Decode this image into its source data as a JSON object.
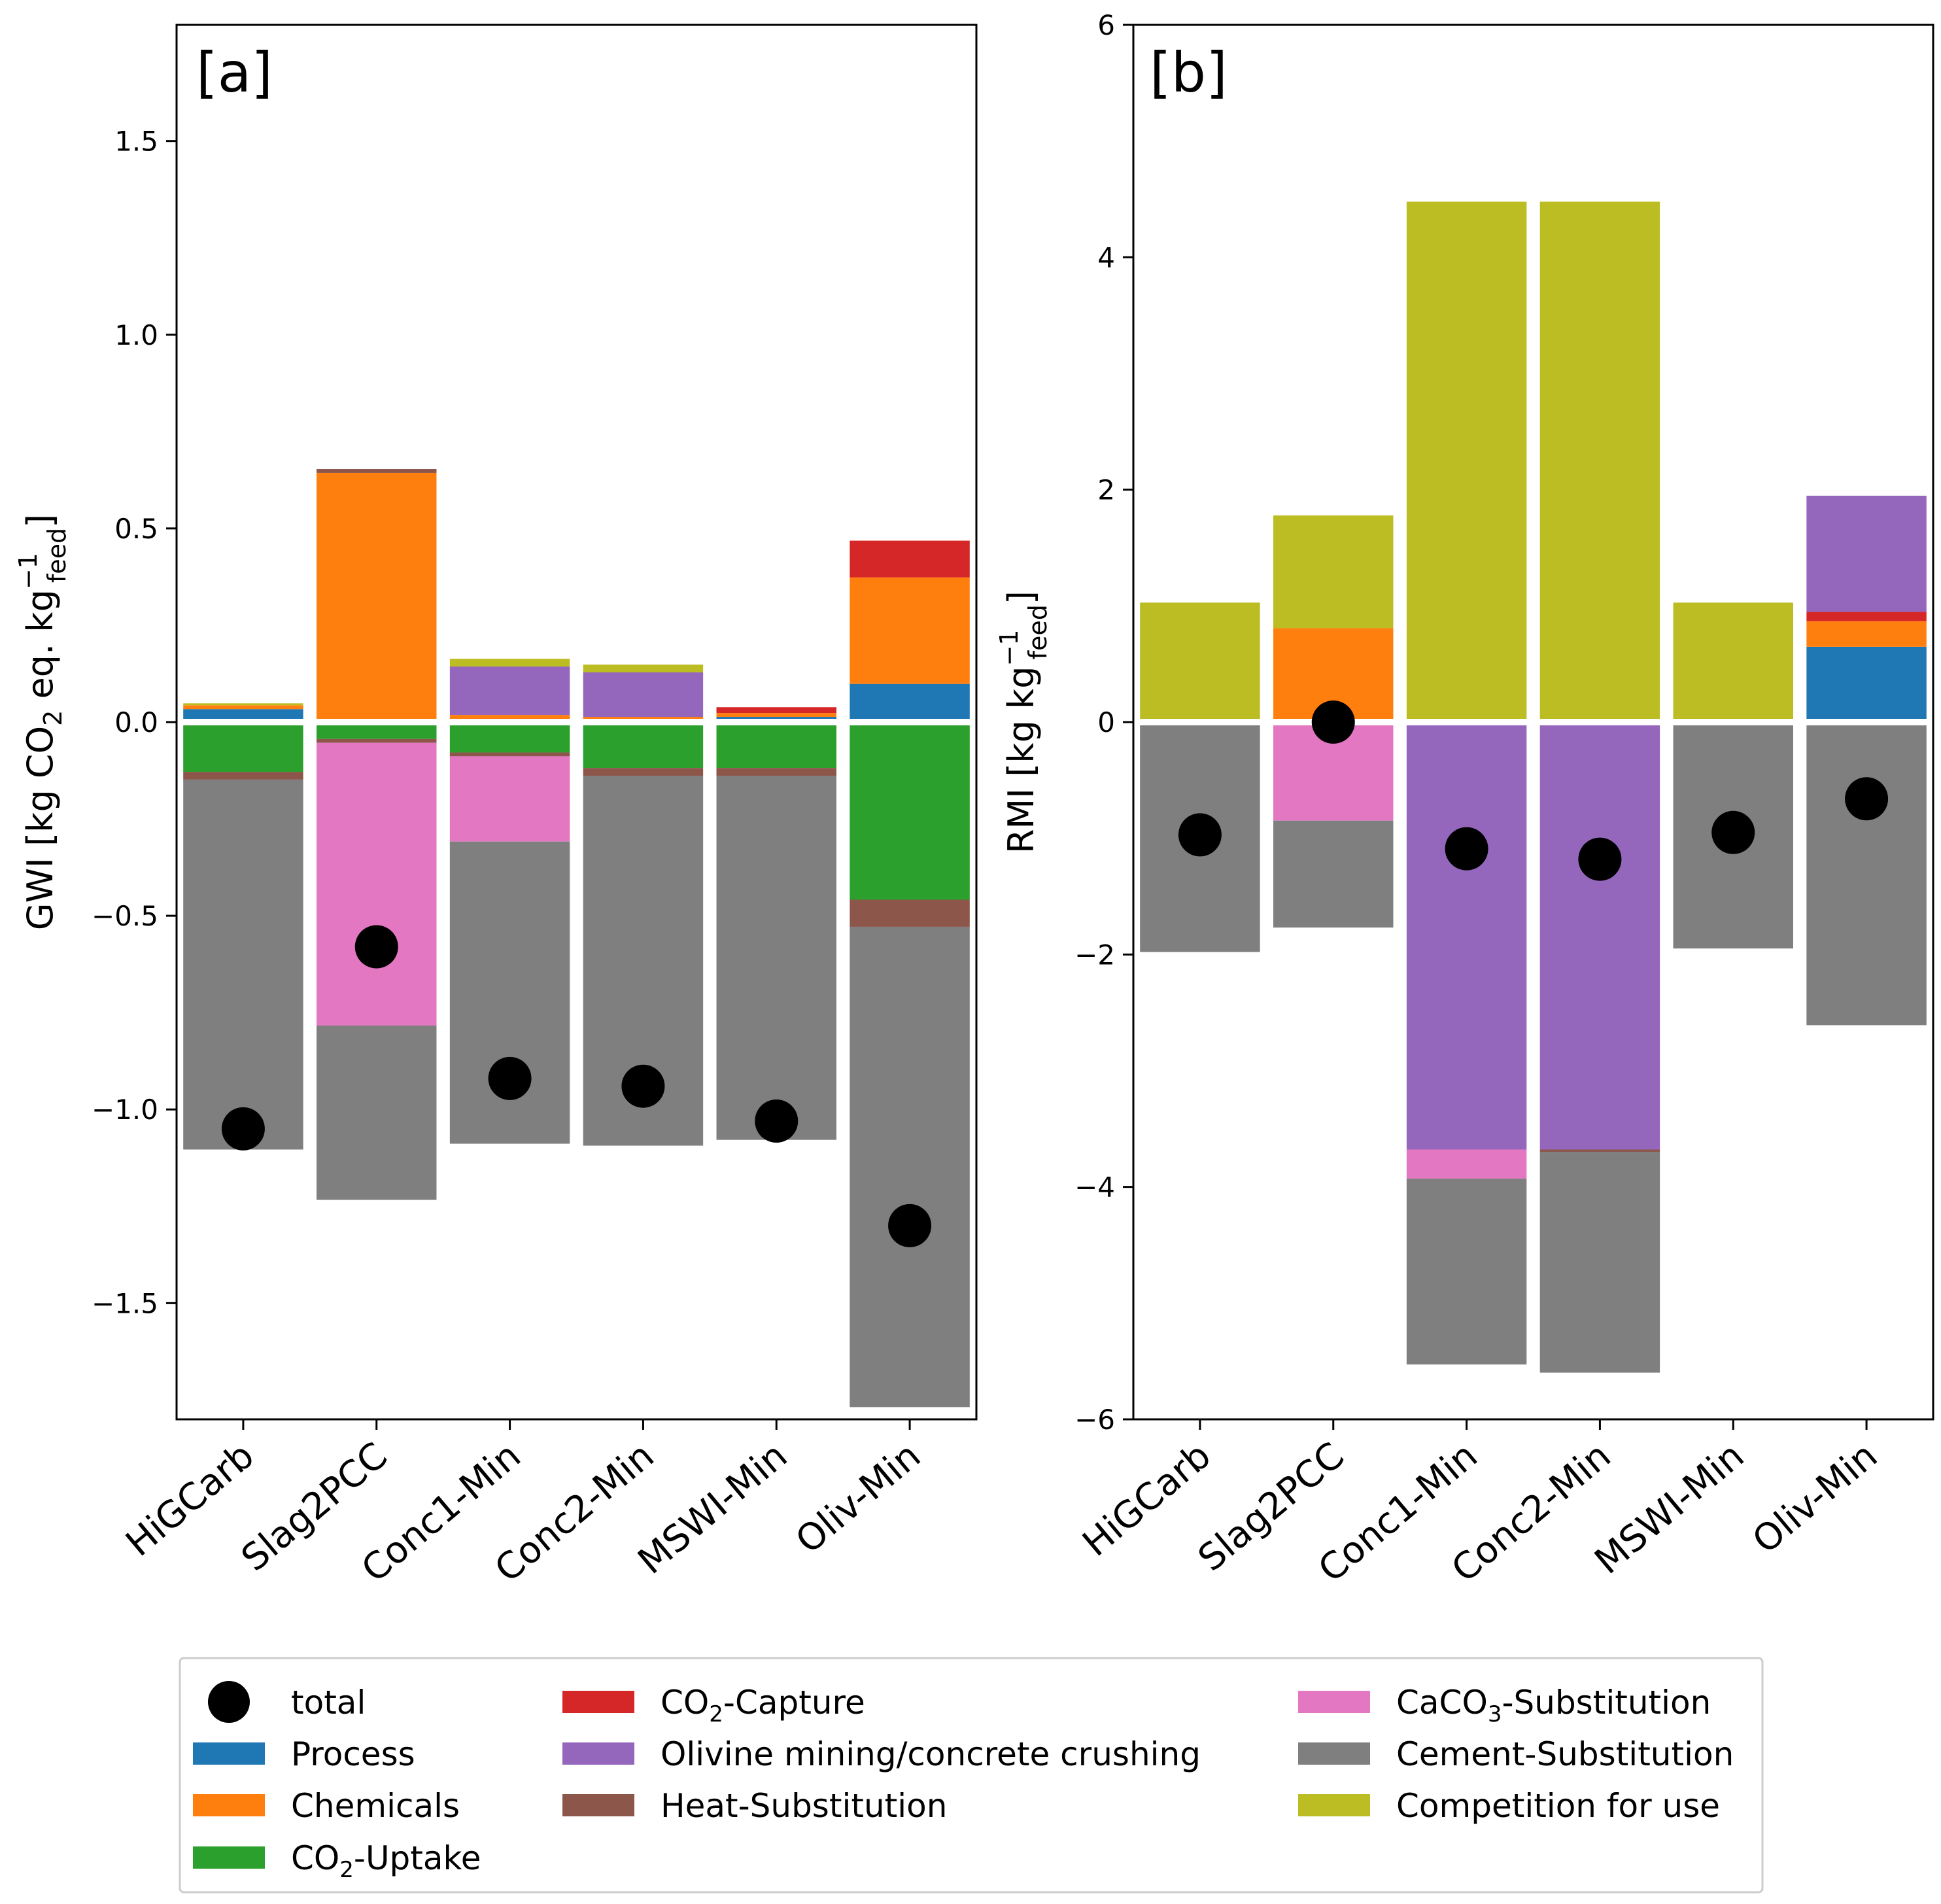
{
  "chart_data": [
    {
      "type": "bar",
      "panel_label": "[a]",
      "ylabel_main": "GWI [kg CO",
      "ylabel_sub2": "2",
      "ylabel_mid": " eq. kg",
      "ylabel_subfeed": "feed",
      "ylabel_supminus1": "−1",
      "ylabel_end": "]",
      "ylim": [
        -1.8,
        1.8
      ],
      "yticks": [
        -1.5,
        -1.0,
        -0.5,
        0.0,
        0.5,
        1.0,
        1.5
      ],
      "ytick_labels": [
        "−1.5",
        "−1.0",
        "−0.5",
        "0.0",
        "0.5",
        "1.0",
        "1.5"
      ],
      "categories": [
        "HiGCarb",
        "Slag2PCC",
        "Conc1-Min",
        "Conc2-Min",
        "MSWI-Min",
        "Oliv-Min"
      ],
      "positive_series": [
        {
          "name": "Process",
          "values": [
            0.025,
            0.0,
            0.0,
            0.0,
            0.005,
            0.09
          ]
        },
        {
          "name": "Chemicals",
          "values": [
            0.01,
            0.635,
            0.01,
            0.005,
            0.01,
            0.275
          ]
        },
        {
          "name": "CO2-Capture",
          "values": [
            0.0,
            0.0,
            0.0,
            0.0,
            0.015,
            0.095
          ]
        },
        {
          "name": "Olivine mining/concrete crushing",
          "values": [
            0.0,
            0.0,
            0.125,
            0.115,
            0.0,
            0.0
          ]
        },
        {
          "name": "Heat-Substitution",
          "values": [
            0.0,
            0.01,
            0.0,
            0.0,
            0.0,
            0.0
          ]
        },
        {
          "name": "Competition for use",
          "values": [
            0.005,
            0.0,
            0.02,
            0.02,
            0.0,
            0.0
          ]
        }
      ],
      "negative_series": [
        {
          "name": "CO2-Uptake",
          "values": [
            -0.12,
            -0.035,
            -0.07,
            -0.11,
            -0.11,
            -0.45
          ]
        },
        {
          "name": "Heat-Substitution",
          "values": [
            -0.02,
            -0.01,
            -0.01,
            -0.02,
            -0.02,
            -0.07
          ]
        },
        {
          "name": "CaCO3-Substitution",
          "values": [
            0.0,
            -0.73,
            -0.22,
            0.0,
            0.0,
            0.0
          ]
        },
        {
          "name": "Cement-Substitution",
          "values": [
            -0.955,
            -0.45,
            -0.78,
            -0.955,
            -0.94,
            -1.24
          ]
        }
      ],
      "totals": [
        -1.05,
        -0.58,
        -0.92,
        -0.94,
        -1.03,
        -1.3
      ]
    },
    {
      "type": "bar",
      "panel_label": "[b]",
      "ylabel_main": "RMI [kg kg",
      "ylabel_subfeed": "feed",
      "ylabel_supminus1": "−1",
      "ylabel_end": "]",
      "ylim": [
        -6,
        6
      ],
      "yticks": [
        -6,
        -4,
        -2,
        0,
        2,
        4,
        6
      ],
      "ytick_labels": [
        "−6",
        "−4",
        "−2",
        "0",
        "2",
        "4",
        "6"
      ],
      "categories": [
        "HiGCarb",
        "Slag2PCC",
        "Conc1-Min",
        "Conc2-Min",
        "MSWI-Min",
        "Oliv-Min"
      ],
      "positive_series": [
        {
          "name": "Process",
          "values": [
            0.0,
            0.0,
            0.0,
            0.0,
            0.0,
            0.62
          ]
        },
        {
          "name": "Chemicals",
          "values": [
            0.0,
            0.78,
            0.0,
            0.0,
            0.0,
            0.22
          ]
        },
        {
          "name": "CO2-Capture",
          "values": [
            0.0,
            0.0,
            0.0,
            0.0,
            0.0,
            0.08
          ]
        },
        {
          "name": "Olivine mining/concrete crushing",
          "values": [
            0.0,
            0.0,
            0.0,
            0.0,
            0.0,
            1.0
          ]
        },
        {
          "name": "Competition for use",
          "values": [
            1.0,
            0.97,
            4.45,
            4.45,
            1.0,
            0.0
          ]
        }
      ],
      "negative_series": [
        {
          "name": "Olivine mining/concrete crushing",
          "values": [
            0.0,
            0.0,
            -3.65,
            -3.65,
            0.0,
            0.0
          ]
        },
        {
          "name": "CaCO3-Substitution",
          "values": [
            0.0,
            -0.82,
            -0.25,
            0.0,
            0.0,
            0.0
          ]
        },
        {
          "name": "Heat-Substitution",
          "values": [
            0.0,
            0.0,
            0.0,
            -0.02,
            0.0,
            0.0
          ]
        },
        {
          "name": "Cement-Substitution",
          "values": [
            -1.95,
            -0.92,
            -1.6,
            -1.9,
            -1.92,
            -2.58
          ]
        }
      ],
      "totals": [
        -0.97,
        0.0,
        -1.09,
        -1.18,
        -0.95,
        -0.66
      ]
    }
  ],
  "colors": {
    "total": "#000000",
    "Process": "#1f77b4",
    "Chemicals": "#ff7f0e",
    "CO2-Uptake": "#2ca02c",
    "CO2-Capture": "#d62728",
    "Olivine mining/concrete crushing": "#9467bd",
    "Heat-Substitution": "#8c564b",
    "CaCO3-Substitution": "#e377c2",
    "Cement-Substitution": "#7f7f7f",
    "Competition for use": "#bcbd22"
  },
  "legend": {
    "items": [
      {
        "key": "total",
        "pre": "total",
        "sub": "",
        "post": "",
        "marker": "circle"
      },
      {
        "key": "Process",
        "pre": "Process",
        "sub": "",
        "post": "",
        "marker": "rect"
      },
      {
        "key": "Chemicals",
        "pre": "Chemicals",
        "sub": "",
        "post": "",
        "marker": "rect"
      },
      {
        "key": "CO2-Uptake",
        "pre": "CO",
        "sub": "2",
        "post": "-Uptake",
        "marker": "rect"
      },
      {
        "key": "CO2-Capture",
        "pre": "CO",
        "sub": "2",
        "post": "-Capture",
        "marker": "rect"
      },
      {
        "key": "Olivine mining/concrete crushing",
        "pre": "Olivine mining/concrete crushing",
        "sub": "",
        "post": "",
        "marker": "rect"
      },
      {
        "key": "Heat-Substitution",
        "pre": "Heat-Substitution",
        "sub": "",
        "post": "",
        "marker": "rect"
      },
      {
        "key": "CaCO3-Substitution",
        "pre": "CaCO",
        "sub": "3",
        "post": "-Substitution",
        "marker": "rect"
      },
      {
        "key": "Cement-Substitution",
        "pre": "Cement-Substitution",
        "sub": "",
        "post": "",
        "marker": "rect"
      },
      {
        "key": "Competition for use",
        "pre": "Competition for use",
        "sub": "",
        "post": "",
        "marker": "rect"
      }
    ]
  }
}
